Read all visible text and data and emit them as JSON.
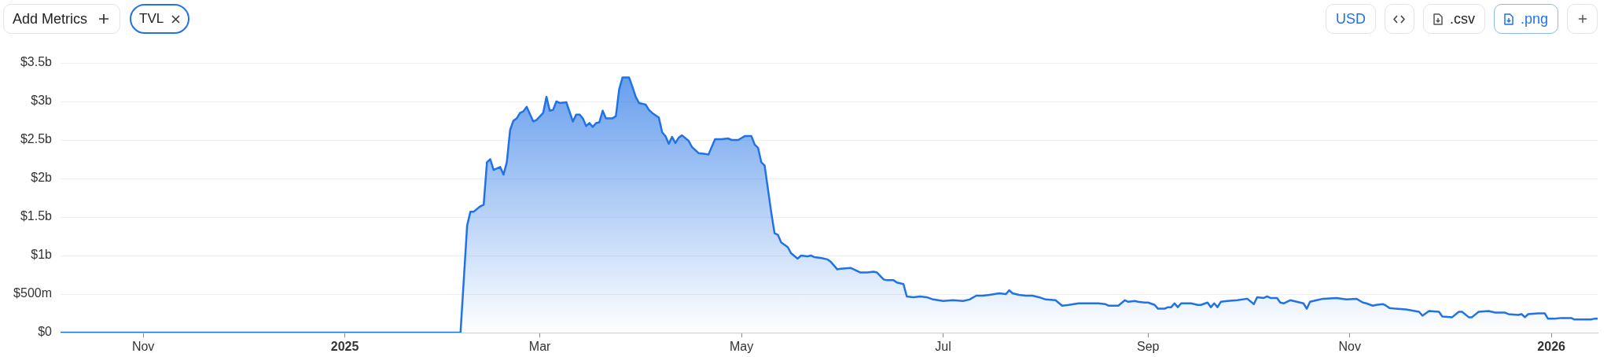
{
  "chart_data": {
    "type": "area",
    "color": "#2172e5",
    "x": [
      "2024-10-07",
      "2025-02-05",
      "2025-02-07",
      "2025-02-08",
      "2025-02-09",
      "2025-02-11",
      "2025-02-12",
      "2025-02-13",
      "2025-02-14",
      "2025-02-15",
      "2025-02-17",
      "2025-02-18",
      "2025-02-19",
      "2025-02-20",
      "2025-02-21",
      "2025-02-22",
      "2025-02-23",
      "2025-02-24",
      "2025-02-25",
      "2025-02-27",
      "2025-02-28",
      "2025-03-02",
      "2025-03-03",
      "2025-03-04",
      "2025-03-05",
      "2025-03-06",
      "2025-03-07",
      "2025-03-09",
      "2025-03-11",
      "2025-03-12",
      "2025-03-13",
      "2025-03-14",
      "2025-03-15",
      "2025-03-16",
      "2025-03-17",
      "2025-03-18",
      "2025-03-19",
      "2025-03-20",
      "2025-03-21",
      "2025-03-23",
      "2025-03-24",
      "2025-03-25",
      "2025-03-26",
      "2025-03-28",
      "2025-03-29",
      "2025-03-30",
      "2025-03-31",
      "2025-04-02",
      "2025-04-03",
      "2025-04-04",
      "2025-04-06",
      "2025-04-07",
      "2025-04-08",
      "2025-04-09",
      "2025-04-10",
      "2025-04-11",
      "2025-04-12",
      "2025-04-13",
      "2025-04-15",
      "2025-04-16",
      "2025-04-18",
      "2025-04-20",
      "2025-04-21",
      "2025-04-23",
      "2025-04-25",
      "2025-04-27",
      "2025-04-28",
      "2025-04-30",
      "2025-05-02",
      "2025-05-04",
      "2025-05-05",
      "2025-05-06",
      "2025-05-07",
      "2025-05-08",
      "2025-05-10",
      "2025-05-11",
      "2025-05-12",
      "2025-05-13",
      "2025-05-15",
      "2025-05-16",
      "2025-05-18",
      "2025-05-19",
      "2025-05-21",
      "2025-05-22",
      "2025-05-23",
      "2025-05-25",
      "2025-05-27",
      "2025-05-28",
      "2025-05-30",
      "2025-05-31",
      "2025-06-03",
      "2025-06-04",
      "2025-06-06",
      "2025-06-08",
      "2025-06-10",
      "2025-06-11",
      "2025-06-13",
      "2025-06-14",
      "2025-06-16",
      "2025-06-17",
      "2025-06-19",
      "2025-06-20",
      "2025-06-22",
      "2025-06-24",
      "2025-06-26",
      "2025-06-28",
      "2025-07-01",
      "2025-07-04",
      "2025-07-07",
      "2025-07-09",
      "2025-07-11",
      "2025-07-13",
      "2025-07-15",
      "2025-07-18",
      "2025-07-20",
      "2025-07-21",
      "2025-07-22",
      "2025-07-24",
      "2025-07-26",
      "2025-07-28",
      "2025-07-30",
      "2025-08-01",
      "2025-08-04",
      "2025-08-06",
      "2025-08-08",
      "2025-08-11",
      "2025-08-14",
      "2025-08-17",
      "2025-08-19",
      "2025-08-20",
      "2025-08-22",
      "2025-08-23",
      "2025-08-25",
      "2025-08-26",
      "2025-08-28",
      "2025-08-29",
      "2025-08-31",
      "2025-09-01",
      "2025-09-03",
      "2025-09-04",
      "2025-09-06",
      "2025-09-07",
      "2025-09-08",
      "2025-09-09",
      "2025-09-10",
      "2025-09-11",
      "2025-09-14",
      "2025-09-16",
      "2025-09-17",
      "2025-09-19",
      "2025-09-20",
      "2025-09-21",
      "2025-09-22",
      "2025-09-23",
      "2025-09-25",
      "2025-09-28",
      "2025-10-01",
      "2025-10-03",
      "2025-10-04",
      "2025-10-06",
      "2025-10-07",
      "2025-10-08",
      "2025-10-10",
      "2025-10-11",
      "2025-10-12",
      "2025-10-14",
      "2025-10-16",
      "2025-10-18",
      "2025-10-19",
      "2025-10-20",
      "2025-10-22",
      "2025-10-24",
      "2025-10-28",
      "2025-10-31",
      "2025-11-03",
      "2025-11-05",
      "2025-11-06",
      "2025-11-08",
      "2025-11-09",
      "2025-11-11",
      "2025-11-12",
      "2025-11-13",
      "2025-11-15",
      "2025-11-18",
      "2025-11-22",
      "2025-11-23",
      "2025-11-25",
      "2025-11-28",
      "2025-11-29",
      "2025-12-02",
      "2025-12-04",
      "2025-12-05",
      "2025-12-07",
      "2025-12-08",
      "2025-12-10",
      "2025-12-13",
      "2025-12-15",
      "2025-12-18",
      "2025-12-19",
      "2025-12-22",
      "2025-12-23",
      "2025-12-24",
      "2025-12-25",
      "2025-12-28",
      "2025-12-30",
      "2025-12-31",
      "2026-01-02",
      "2026-01-04",
      "2026-01-07",
      "2026-01-08",
      "2026-01-13",
      "2026-01-14",
      "2026-01-15"
    ],
    "values": [
      0,
      0,
      1390000000,
      1570000000,
      1570000000,
      1640000000,
      1660000000,
      2210000000,
      2250000000,
      2110000000,
      2150000000,
      2050000000,
      2210000000,
      2630000000,
      2750000000,
      2780000000,
      2850000000,
      2870000000,
      2930000000,
      2740000000,
      2760000000,
      2850000000,
      3060000000,
      2880000000,
      2890000000,
      3000000000,
      2980000000,
      2990000000,
      2740000000,
      2830000000,
      2830000000,
      2780000000,
      2680000000,
      2720000000,
      2670000000,
      2720000000,
      2730000000,
      2880000000,
      2780000000,
      2780000000,
      2810000000,
      3160000000,
      3310000000,
      3310000000,
      3190000000,
      3060000000,
      2980000000,
      2960000000,
      2890000000,
      2850000000,
      2790000000,
      2600000000,
      2550000000,
      2450000000,
      2540000000,
      2460000000,
      2530000000,
      2560000000,
      2490000000,
      2410000000,
      2330000000,
      2320000000,
      2310000000,
      2510000000,
      2510000000,
      2520000000,
      2500000000,
      2500000000,
      2550000000,
      2550000000,
      2440000000,
      2400000000,
      2210000000,
      2170000000,
      1560000000,
      1290000000,
      1270000000,
      1170000000,
      1110000000,
      1030000000,
      960000000,
      1000000000,
      990000000,
      1000000000,
      980000000,
      970000000,
      950000000,
      920000000,
      820000000,
      830000000,
      840000000,
      820000000,
      780000000,
      780000000,
      790000000,
      780000000,
      690000000,
      680000000,
      680000000,
      650000000,
      630000000,
      470000000,
      460000000,
      470000000,
      460000000,
      430000000,
      410000000,
      420000000,
      410000000,
      430000000,
      480000000,
      480000000,
      490000000,
      510000000,
      500000000,
      550000000,
      510000000,
      490000000,
      480000000,
      480000000,
      460000000,
      430000000,
      420000000,
      350000000,
      360000000,
      380000000,
      380000000,
      380000000,
      370000000,
      350000000,
      350000000,
      350000000,
      420000000,
      400000000,
      410000000,
      400000000,
      390000000,
      390000000,
      360000000,
      310000000,
      310000000,
      330000000,
      330000000,
      380000000,
      330000000,
      380000000,
      380000000,
      360000000,
      360000000,
      390000000,
      330000000,
      380000000,
      330000000,
      400000000,
      410000000,
      420000000,
      440000000,
      370000000,
      460000000,
      450000000,
      470000000,
      450000000,
      450000000,
      390000000,
      380000000,
      420000000,
      400000000,
      380000000,
      310000000,
      400000000,
      420000000,
      440000000,
      450000000,
      430000000,
      440000000,
      390000000,
      380000000,
      350000000,
      360000000,
      370000000,
      350000000,
      320000000,
      310000000,
      300000000,
      270000000,
      220000000,
      280000000,
      270000000,
      210000000,
      200000000,
      270000000,
      270000000,
      200000000,
      200000000,
      270000000,
      280000000,
      260000000,
      260000000,
      240000000,
      230000000,
      240000000,
      200000000,
      240000000,
      250000000,
      250000000,
      180000000,
      180000000,
      190000000,
      190000000,
      170000000,
      170000000,
      180000000,
      180000000
    ],
    "xlim": [
      "2024-10-07",
      "2026-01-15"
    ],
    "xticks": [
      {
        "value": "2024-11-01",
        "label": "Nov"
      },
      {
        "value": "2025-01-01",
        "label": "2025"
      },
      {
        "value": "2025-03-01",
        "label": "Mar"
      },
      {
        "value": "2025-05-01",
        "label": "May"
      },
      {
        "value": "2025-07-01",
        "label": "Jul"
      },
      {
        "value": "2025-09-01",
        "label": "Sep"
      },
      {
        "value": "2025-11-01",
        "label": "Nov"
      },
      {
        "value": "2026-01-01",
        "label": "2026"
      }
    ],
    "ylim": [
      0,
      3500000000
    ],
    "yticks": [
      {
        "value": 0,
        "label": "$0"
      },
      {
        "value": 500000000,
        "label": "$500m"
      },
      {
        "value": 1000000000,
        "label": "$1b"
      },
      {
        "value": 1500000000,
        "label": "$1.5b"
      },
      {
        "value": 2000000000,
        "label": "$2b"
      },
      {
        "value": 2500000000,
        "label": "$2.5b"
      },
      {
        "value": 3000000000,
        "label": "$3b"
      },
      {
        "value": 3500000000,
        "label": "$3.5b"
      }
    ],
    "grid": "y",
    "annotations": [
      "Add Metrics",
      "TVL",
      "USD",
      ".csv",
      ".png"
    ]
  }
}
